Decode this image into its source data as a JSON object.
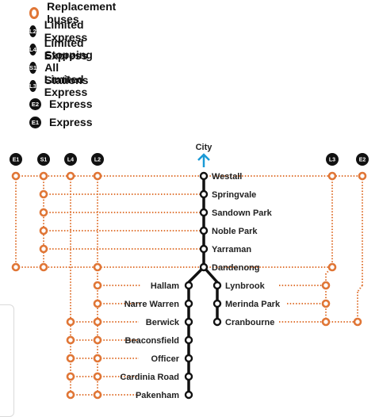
{
  "legend": [
    {
      "code": "",
      "label": "Replacement buses",
      "kind": "ring"
    },
    {
      "code": "L2",
      "label": "Limited Express",
      "kind": "badge"
    },
    {
      "code": "L4",
      "label": "Limited Express",
      "kind": "badge"
    },
    {
      "code": "S1",
      "label": "Stopping All Stations",
      "kind": "badge"
    },
    {
      "code": "L3",
      "label": "Limited Express",
      "kind": "badge"
    },
    {
      "code": "E2",
      "label": "Express",
      "kind": "badge"
    },
    {
      "code": "E1",
      "label": "Express",
      "kind": "badge"
    }
  ],
  "direction": {
    "label": "City"
  },
  "stations": [
    {
      "name": "Westall"
    },
    {
      "name": "Springvale"
    },
    {
      "name": "Sandown Park"
    },
    {
      "name": "Noble Park"
    },
    {
      "name": "Yarraman"
    },
    {
      "name": "Dandenong"
    },
    {
      "name": "Hallam"
    },
    {
      "name": "Narre Warren"
    },
    {
      "name": "Berwick"
    },
    {
      "name": "Beaconsfield"
    },
    {
      "name": "Officer"
    },
    {
      "name": "Cardinia Road"
    },
    {
      "name": "Pakenham"
    },
    {
      "name": "Lynbrook"
    },
    {
      "name": "Merinda Park"
    },
    {
      "name": "Cranbourne"
    }
  ],
  "routes": [
    {
      "code": "E1",
      "stops": [
        "Westall",
        "Dandenong"
      ]
    },
    {
      "code": "S1",
      "stops": [
        "Westall",
        "Springvale",
        "Sandown Park",
        "Noble Park",
        "Yarraman",
        "Dandenong"
      ]
    },
    {
      "code": "L4",
      "stops": [
        "Westall",
        "Berwick",
        "Beaconsfield",
        "Officer",
        "Cardinia Road",
        "Pakenham"
      ]
    },
    {
      "code": "L2",
      "stops": [
        "Westall",
        "Dandenong",
        "Hallam",
        "Narre Warren",
        "Berwick",
        "Beaconsfield",
        "Officer",
        "Cardinia Road",
        "Pakenham"
      ]
    },
    {
      "code": "L3",
      "stops": [
        "Westall",
        "Dandenong",
        "Lynbrook",
        "Merinda Park",
        "Cranbourne"
      ]
    },
    {
      "code": "E2",
      "stops": [
        "Westall",
        "Cranbourne"
      ]
    }
  ],
  "colors": {
    "bus": "#e07636",
    "rail": "#111111",
    "arrow": "#1a9ad6"
  }
}
